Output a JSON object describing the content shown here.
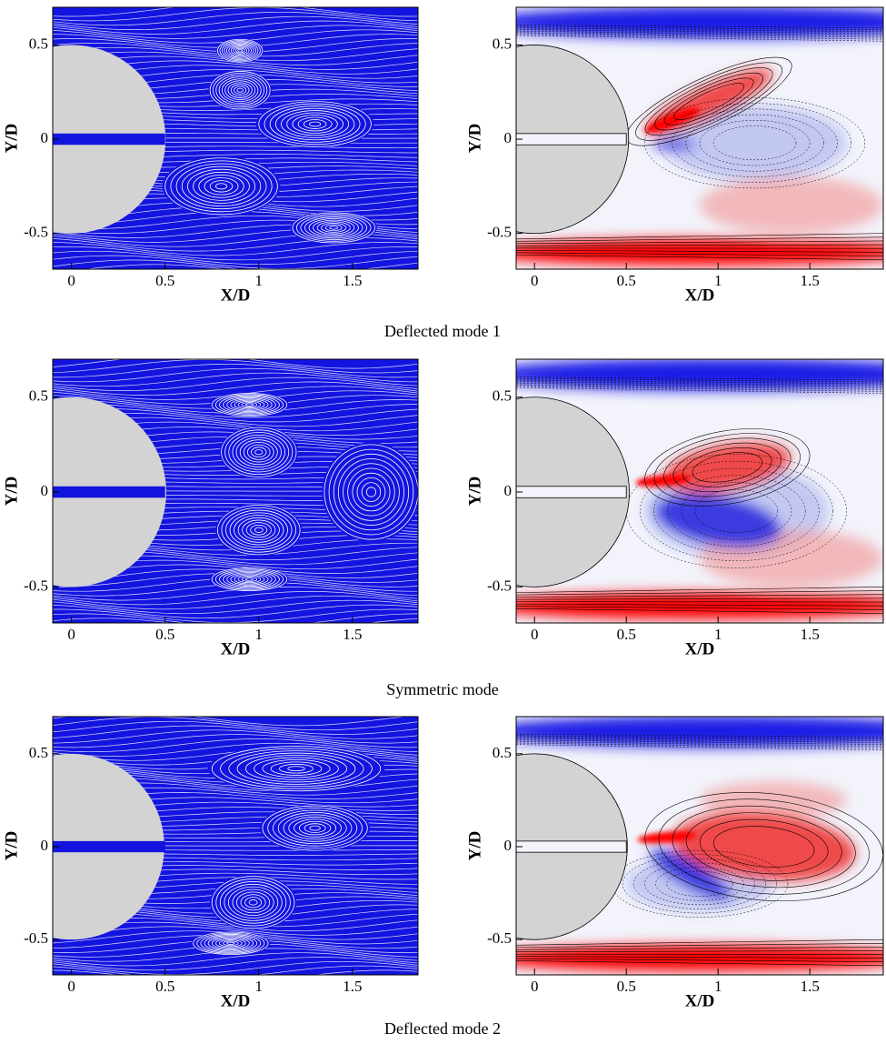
{
  "figure": {
    "captions": [
      "Deflected mode 1",
      "Symmetric mode",
      "Deflected mode 2"
    ]
  },
  "chart_data": [
    {
      "type": "streamline",
      "xlabel": "X/D",
      "ylabel": "Y/D",
      "xlim": [
        -0.1,
        1.85
      ],
      "ylim": [
        -0.69,
        0.7
      ],
      "xticks": [
        0,
        0.5,
        1,
        1.5
      ],
      "yticks": [
        -0.5,
        0,
        0.5
      ]
    },
    {
      "type": "contour",
      "xlabel": "X/D",
      "ylabel": "Y/D",
      "xlim": [
        -0.1,
        1.9
      ],
      "ylim": [
        -0.69,
        0.7
      ],
      "xticks": [
        0,
        0.5,
        1,
        1.5
      ],
      "yticks": [
        -0.5,
        0,
        0.5
      ]
    },
    {
      "type": "streamline",
      "xlabel": "X/D",
      "ylabel": "Y/D",
      "xlim": [
        -0.1,
        1.85
      ],
      "ylim": [
        -0.69,
        0.7
      ],
      "xticks": [
        0,
        0.5,
        1,
        1.5
      ],
      "yticks": [
        -0.5,
        0,
        0.5
      ]
    },
    {
      "type": "contour",
      "xlabel": "X/D",
      "ylabel": "Y/D",
      "xlim": [
        -0.1,
        1.9
      ],
      "ylim": [
        -0.69,
        0.7
      ],
      "xticks": [
        0,
        0.5,
        1,
        1.5
      ],
      "yticks": [
        -0.5,
        0,
        0.5
      ]
    },
    {
      "type": "streamline",
      "xlabel": "X/D",
      "ylabel": "Y/D",
      "xlim": [
        -0.1,
        1.85
      ],
      "ylim": [
        -0.69,
        0.7
      ],
      "xticks": [
        0,
        0.5,
        1,
        1.5
      ],
      "yticks": [
        -0.5,
        0,
        0.5
      ]
    },
    {
      "type": "contour",
      "xlabel": "X/D",
      "ylabel": "Y/D",
      "xlim": [
        -0.1,
        1.9
      ],
      "ylim": [
        -0.69,
        0.7
      ],
      "xticks": [
        0,
        0.5,
        1,
        1.5
      ],
      "yticks": [
        -0.5,
        0,
        0.5
      ]
    }
  ]
}
